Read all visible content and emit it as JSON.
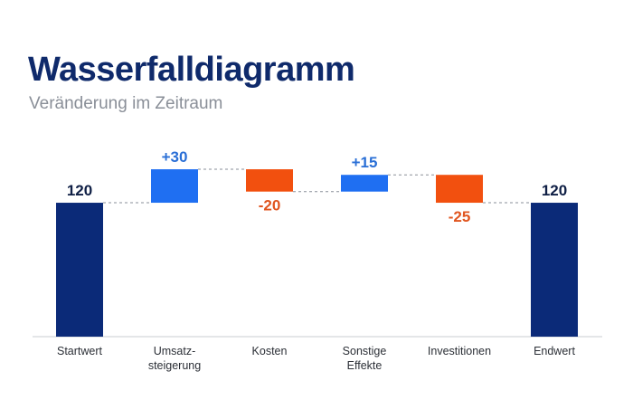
{
  "title": "Wasserfalldiagramm",
  "subtitle": "Veränderung im Zeitraum",
  "colors": {
    "total": "#0b2a78",
    "increase": "#1f6ff2",
    "decrease": "#f2500f",
    "increase_label": "#2a6fd6",
    "decrease_label": "#e0551f",
    "total_label": "#0f1f45",
    "connector": "#8a8f98",
    "axis": "#c9ccd1"
  },
  "chart_data": {
    "type": "bar",
    "subtype": "waterfall",
    "title": "Wasserfalldiagramm",
    "subtitle": "Veränderung im Zeitraum",
    "ylim": [
      0,
      160
    ],
    "grid": false,
    "legend": "none",
    "steps": [
      {
        "category": [
          "Startwert"
        ],
        "kind": "total",
        "value": 120,
        "label": "120"
      },
      {
        "category": [
          "Umsatz-",
          "steigerung"
        ],
        "kind": "increase",
        "value": 30,
        "label": "+30"
      },
      {
        "category": [
          "Kosten"
        ],
        "kind": "decrease",
        "value": -20,
        "label": "-20"
      },
      {
        "category": [
          "Sonstige",
          "Effekte"
        ],
        "kind": "increase",
        "value": 15,
        "label": "+15"
      },
      {
        "category": [
          "Investitionen"
        ],
        "kind": "decrease",
        "value": -25,
        "label": "-25"
      },
      {
        "category": [
          "Endwert"
        ],
        "kind": "total",
        "value": 120,
        "label": "120"
      }
    ]
  }
}
